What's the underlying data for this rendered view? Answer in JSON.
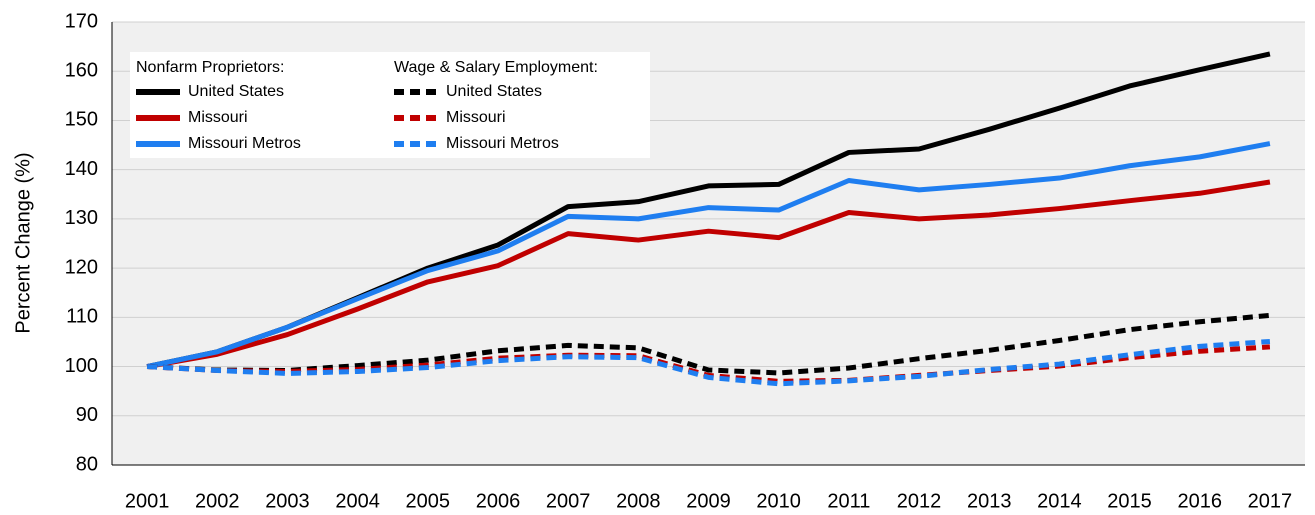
{
  "chart_data": {
    "type": "line",
    "y_label": "Percent Change (%)",
    "categories": [
      "2001",
      "2002",
      "2003",
      "2004",
      "2005",
      "2006",
      "2007",
      "2008",
      "2009",
      "2010",
      "2011",
      "2012",
      "2013",
      "2014",
      "2015",
      "2016",
      "2017"
    ],
    "ylim": [
      80,
      170
    ],
    "yticks": [
      80,
      90,
      100,
      110,
      120,
      130,
      140,
      150,
      160,
      170
    ],
    "grid": true,
    "legend": "top-left",
    "series_groups": [
      {
        "name": "Nonfarm Proprietors:",
        "dashed": false,
        "series": [
          {
            "name": "United States",
            "color": "#000000",
            "values": [
              100,
              103,
              108,
              114,
              120,
              124.7,
              132.5,
              133.5,
              136.7,
              137,
              143.5,
              144.2,
              148.2,
              152.5,
              157,
              160.3,
              163.5
            ]
          },
          {
            "name": "Missouri",
            "color": "#c00000",
            "values": [
              100,
              102.5,
              106.5,
              111.7,
              117.2,
              120.5,
              127,
              125.7,
              127.5,
              126.2,
              131.3,
              130,
              130.8,
              132.1,
              133.7,
              135.2,
              137.5
            ]
          },
          {
            "name": "Missouri Metros",
            "color": "#1f7ef0",
            "values": [
              100,
              103,
              108,
              113.8,
              119.5,
              123.5,
              130.5,
              130,
              132.3,
              131.8,
              137.8,
              135.9,
              137,
              138.3,
              140.8,
              142.6,
              145.3
            ]
          }
        ]
      },
      {
        "name": "Wage & Salary Employment:",
        "dashed": true,
        "series": [
          {
            "name": "United States",
            "color": "#000000",
            "values": [
              100,
              99.3,
              99.2,
              100.2,
              101.3,
              103.2,
              104.3,
              103.8,
              99.3,
              98.7,
              99.7,
              101.6,
              103.3,
              105.3,
              107.5,
              109.1,
              110.4
            ]
          },
          {
            "name": "Missouri",
            "color": "#c00000",
            "values": [
              100,
              99.2,
              99,
              99.4,
              100.3,
              101.7,
              102.3,
              102.2,
              98.2,
              97,
              97.2,
              98.2,
              99.2,
              100.1,
              101.8,
              103.1,
              104
            ]
          },
          {
            "name": "Missouri Metros",
            "color": "#1f7ef0",
            "values": [
              100,
              99.2,
              98.6,
              99,
              99.8,
              101.2,
              102,
              101.8,
              97.8,
              96.5,
              97.1,
              98,
              99.4,
              100.5,
              102.4,
              104.1,
              105.1
            ]
          }
        ]
      }
    ]
  }
}
